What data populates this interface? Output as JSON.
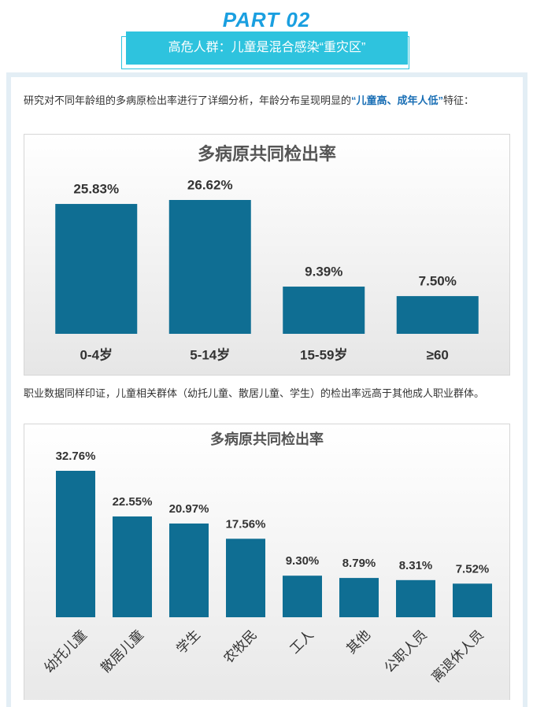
{
  "header": {
    "part": "PART 02",
    "title": "高危人群：儿童是混合感染“重灾区”"
  },
  "paragraphs": [
    [
      "研究对不同年龄组的多病原检出率进行了详细分析，年龄分布呈现明显的",
      "“儿童高、成年人低”",
      "特征："
    ],
    [
      "职业数据同样印证，儿童相关群体（幼托儿童、散居儿童、学生）的检出率远高于其他成人职业群体。"
    ]
  ],
  "chart_data": [
    {
      "type": "bar",
      "title": "多病原共同检出率",
      "color": "#0f6e93",
      "categories": [
        "0-4岁",
        "5-14岁",
        "15-59岁",
        "≥60"
      ],
      "values": [
        25.83,
        26.62,
        9.39,
        7.5
      ],
      "value_labels": [
        "25.83%",
        "26.62%",
        "9.39%",
        "7.50%"
      ]
    },
    {
      "type": "bar",
      "title": "多病原共同检出率",
      "color": "#0f6e93",
      "categories": [
        "幼托儿童",
        "散居儿童",
        "学生",
        "农牧民",
        "工人",
        "其他",
        "公职人员",
        "离退休人员"
      ],
      "values": [
        32.76,
        22.55,
        20.97,
        17.56,
        9.3,
        8.79,
        8.31,
        7.52
      ],
      "value_labels": [
        "32.76%",
        "22.55%",
        "20.97%",
        "17.56%",
        "9.30%",
        "8.79%",
        "8.31%",
        "7.52%"
      ]
    }
  ]
}
